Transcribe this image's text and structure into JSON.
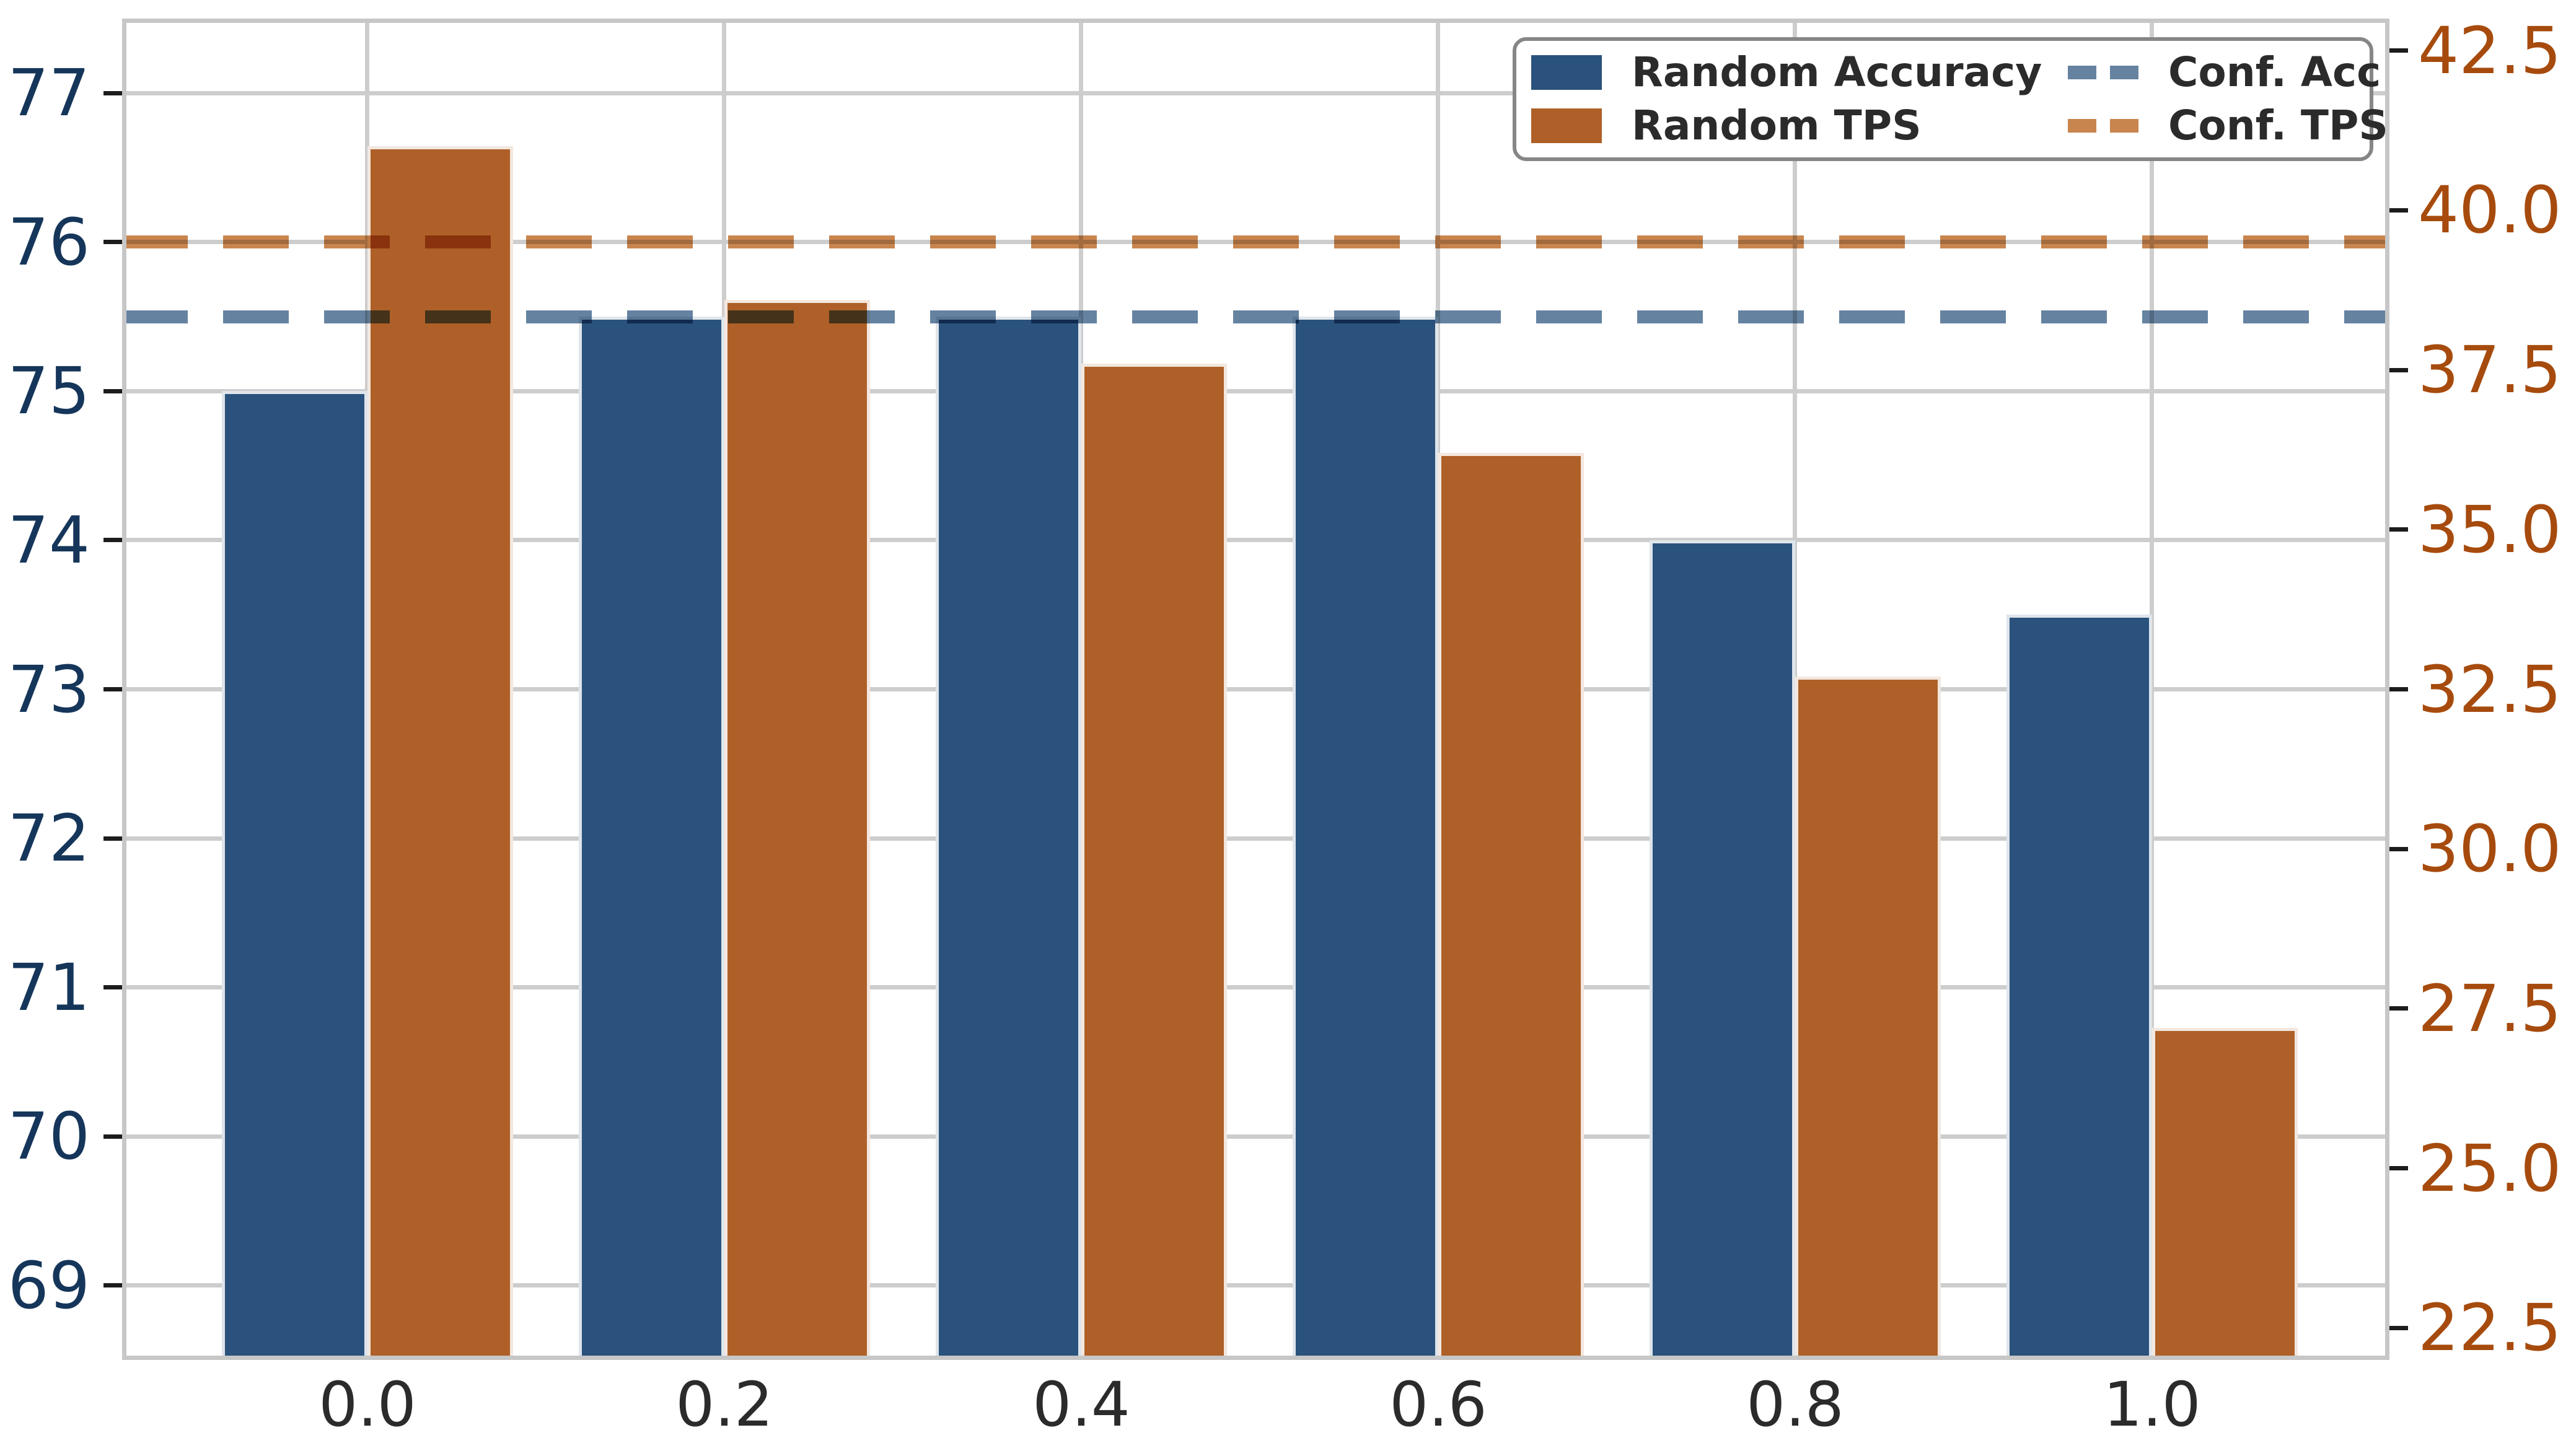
{
  "chart_data": {
    "type": "bar",
    "title": "",
    "categories": [
      "0.0",
      "0.2",
      "0.4",
      "0.6",
      "0.8",
      "1.0"
    ],
    "x_values": [
      0,
      0.2,
      0.4,
      0.6,
      0.8,
      1.0
    ],
    "series": [
      {
        "name": "Random Accuracy",
        "axis": "left",
        "color": "#2a527c",
        "values": [
          75.0,
          75.5,
          75.5,
          75.5,
          74.0,
          73.5
        ]
      },
      {
        "name": "Random TPS",
        "axis": "right",
        "color": "#ae6028",
        "values": [
          41.0,
          38.6,
          37.6,
          36.2,
          32.7,
          27.2
        ]
      }
    ],
    "ref_lines": [
      {
        "name": "Conf. Acc",
        "axis": "left",
        "value": 75.5,
        "color": "#6583a1"
      },
      {
        "name": "Conf. TPS",
        "axis": "right",
        "value": 39.5,
        "color": "#c9854e"
      }
    ],
    "bar_width": 0.0815,
    "left_axis": {
      "ylabel": "",
      "tick_labels": [
        "77",
        "76",
        "75",
        "74",
        "73",
        "72",
        "71",
        "70",
        "69"
      ],
      "tick_values": [
        77,
        76,
        75,
        74,
        73,
        72,
        71,
        70,
        69
      ],
      "range": [
        68.5,
        77.5
      ],
      "color": "#15365a"
    },
    "right_axis": {
      "ylabel": "",
      "tick_labels": [
        "42.5",
        "40.0",
        "37.5",
        "35.0",
        "32.5",
        "30.0",
        "27.5",
        "25.0",
        "22.5"
      ],
      "tick_values": [
        42.5,
        40.0,
        37.5,
        35.0,
        32.5,
        30.0,
        27.5,
        25.0,
        22.5
      ],
      "range": [
        22.0,
        43.0
      ],
      "color": "#a64b0d"
    },
    "x_axis": {
      "xlabel": "",
      "tick_labels": [
        "0.0",
        "0.2",
        "0.4",
        "0.6",
        "0.8",
        "1.0"
      ],
      "tick_values": [
        0,
        0.2,
        0.4,
        0.6,
        0.8,
        1.0
      ],
      "range": [
        -0.1375,
        1.133
      ],
      "color": "#2b2b2b"
    },
    "grid": {
      "horizontal": true,
      "vertical": true,
      "color": "#cdcdcd"
    },
    "legend": {
      "position": "upper-right",
      "items": [
        {
          "label": "Random Accuracy",
          "swatch": "patch",
          "color": "#2a527c"
        },
        {
          "label": "Random TPS",
          "swatch": "patch",
          "color": "#ae6028"
        },
        {
          "label": "Conf. Acc",
          "swatch": "dash",
          "color": "#6583a1"
        },
        {
          "label": "Conf. TPS",
          "swatch": "dash",
          "color": "#c9854e"
        }
      ]
    },
    "background": "#ffffff"
  }
}
